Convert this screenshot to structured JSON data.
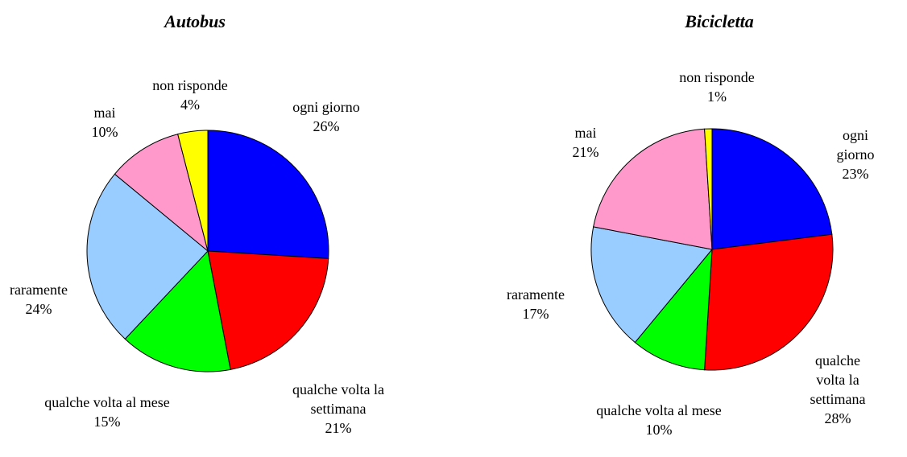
{
  "chart_data": [
    {
      "type": "pie",
      "title": "Autobus",
      "categories": [
        "ogni giorno",
        "qualche volta la settimana",
        "qualche volta al mese",
        "raramente",
        "mai",
        "non risponde"
      ],
      "values": [
        26,
        21,
        15,
        24,
        10,
        4
      ],
      "value_labels": [
        "26%",
        "21%",
        "15%",
        "24%",
        "10%",
        "4%"
      ],
      "colors": [
        "#0000ff",
        "#ff0000",
        "#00ff00",
        "#99ccff",
        "#ff99cc",
        "#ffff00"
      ]
    },
    {
      "type": "pie",
      "title": "Bicicletta",
      "categories": [
        "ogni giorno",
        "qualche volta la settimana",
        "qualche volta al mese",
        "raramente",
        "mai",
        "non risponde"
      ],
      "values": [
        23,
        28,
        10,
        17,
        21,
        1
      ],
      "value_labels": [
        "23%",
        "28%",
        "10%",
        "17%",
        "21%",
        "1%"
      ],
      "colors": [
        "#0000ff",
        "#ff0000",
        "#00ff00",
        "#99ccff",
        "#ff99cc",
        "#ffff00"
      ]
    }
  ]
}
